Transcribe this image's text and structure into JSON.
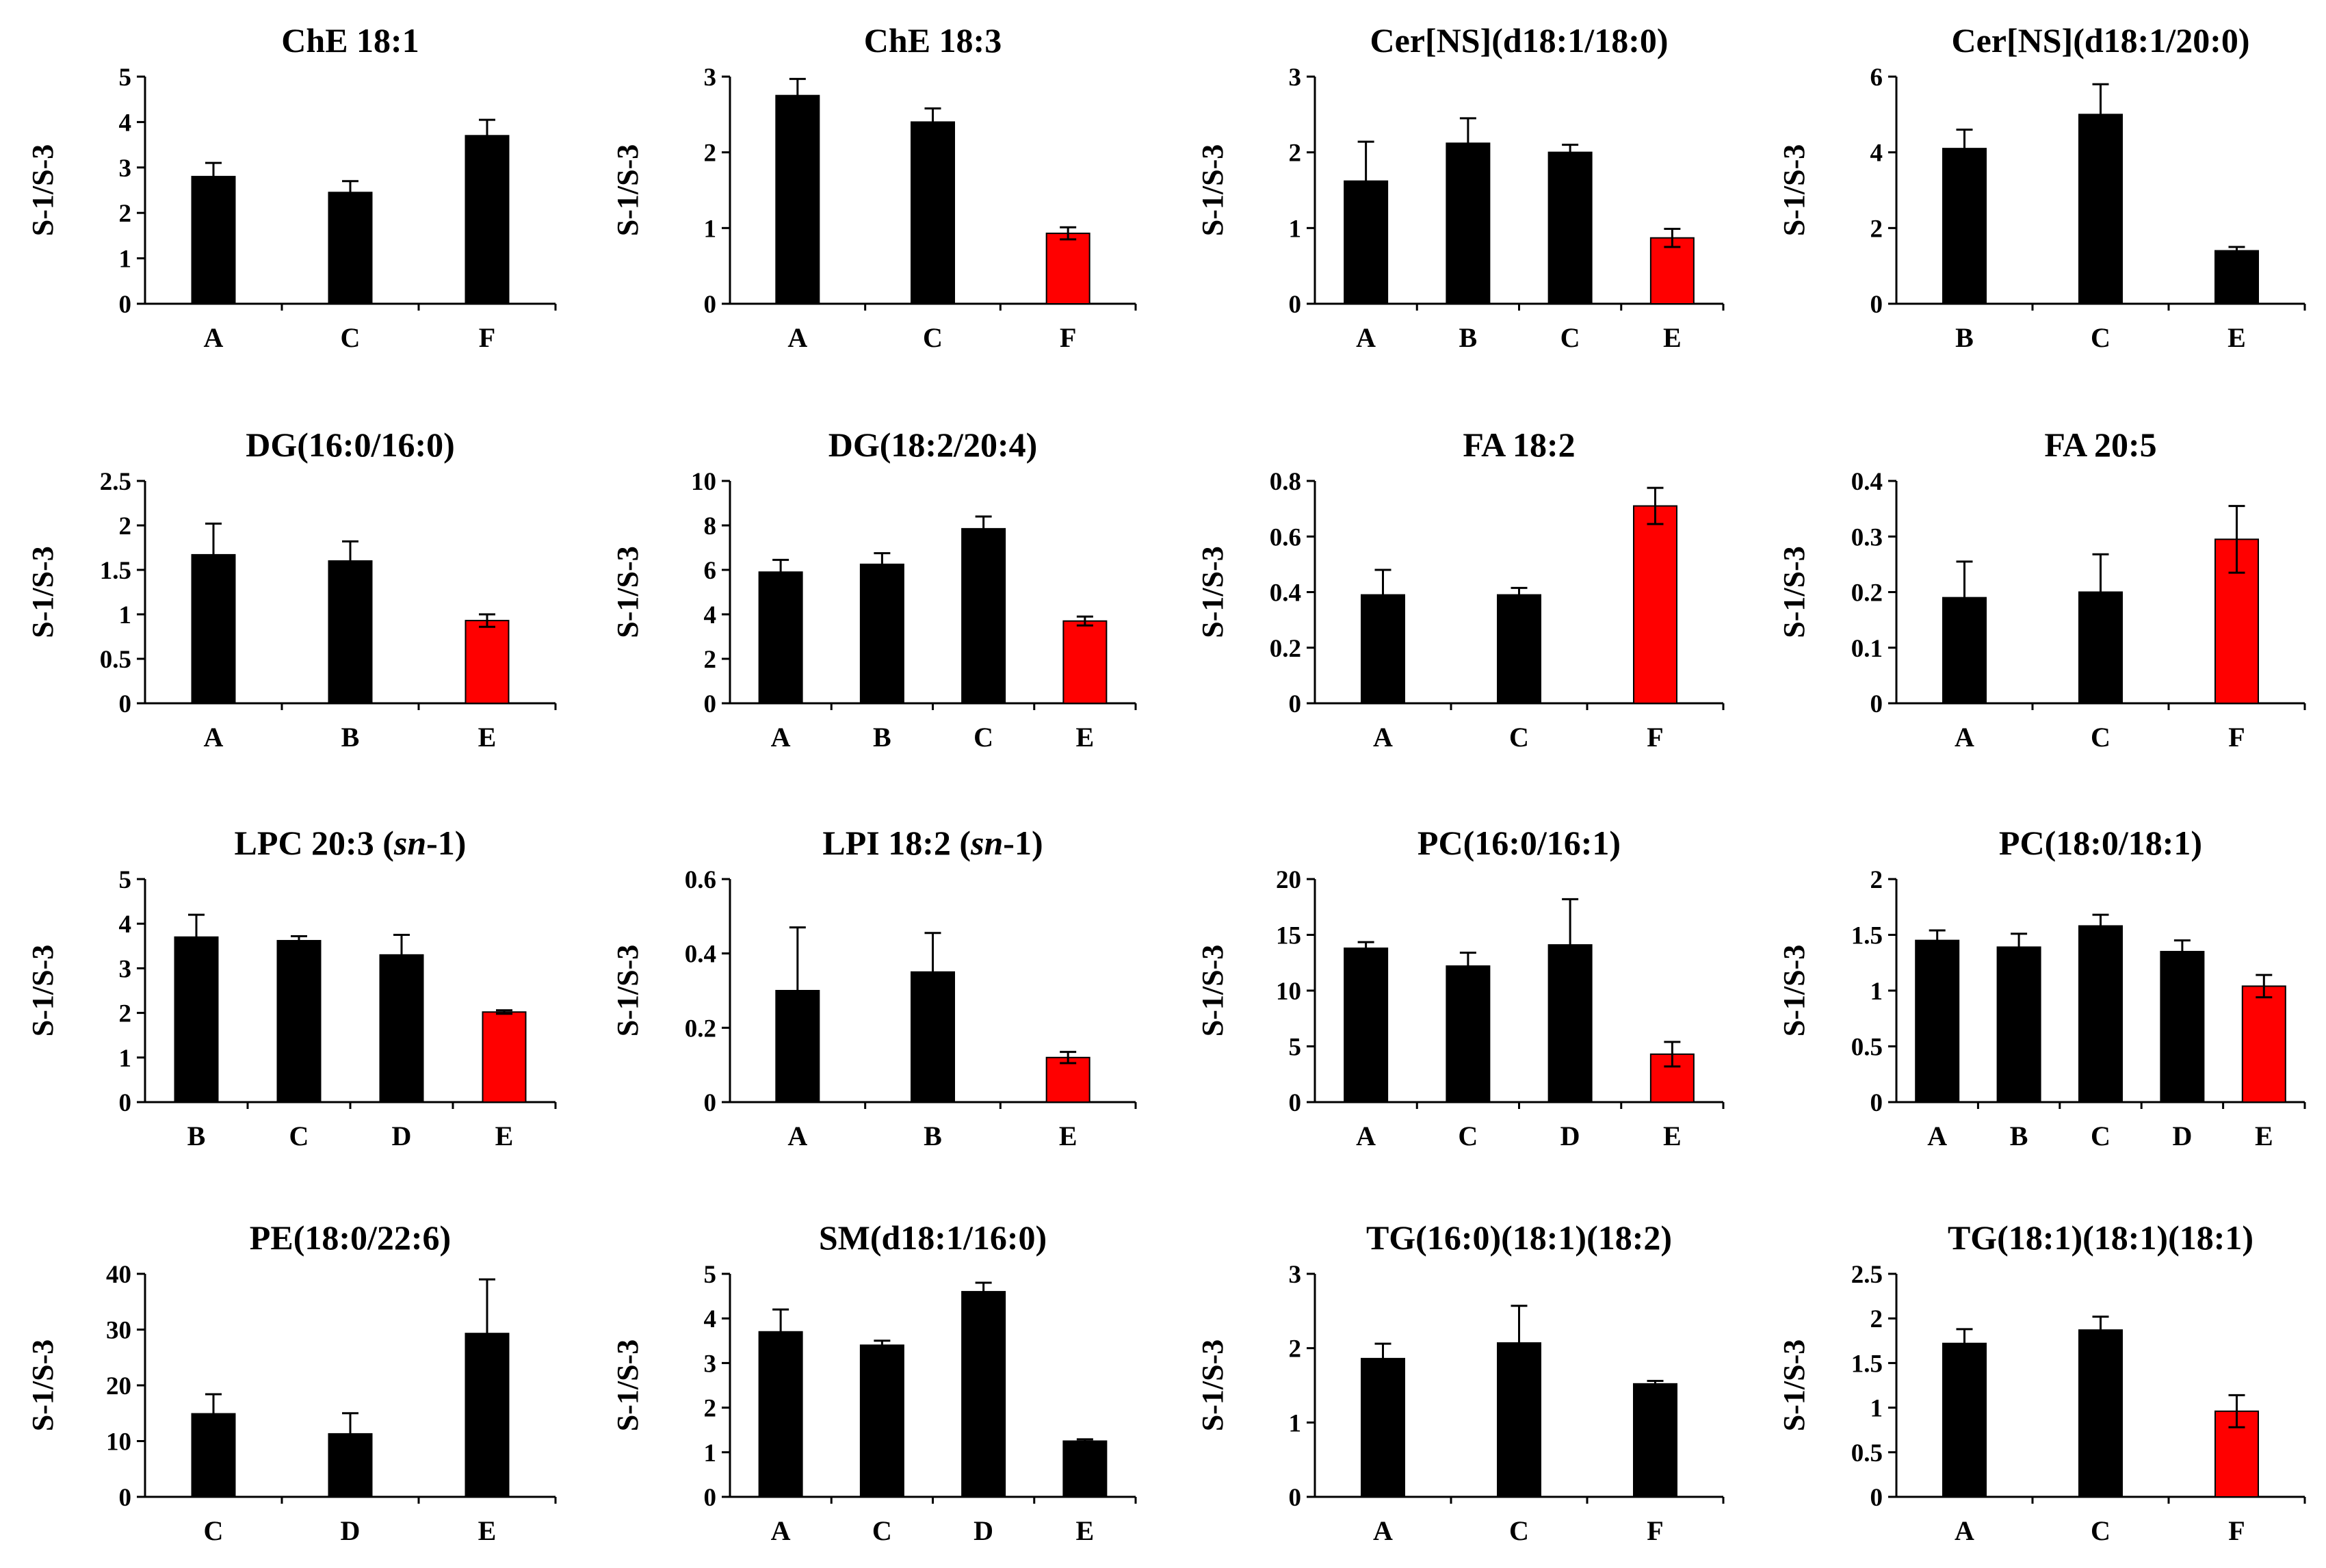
{
  "figure": {
    "ylabel": "S-1/S-3",
    "colors": {
      "normal": "#000000",
      "highlight": "#ff0000",
      "error_bar": "#000000"
    }
  },
  "chart_data": [
    {
      "type": "bar",
      "title": "ChE 18:1",
      "ylabel": "S-1/S-3",
      "ylim": [
        0,
        5
      ],
      "ticks": [
        "0",
        "1",
        "2",
        "3",
        "4",
        "5"
      ],
      "categories": [
        "A",
        "C",
        "F"
      ],
      "values": [
        2.8,
        2.45,
        3.7
      ],
      "errors": [
        0.3,
        0.25,
        0.35
      ],
      "highlight": [
        false,
        false,
        false
      ]
    },
    {
      "type": "bar",
      "title": "ChE 18:3",
      "ylabel": "S-1/S-3",
      "ylim": [
        0,
        3
      ],
      "ticks": [
        "0",
        "1",
        "2",
        "3"
      ],
      "categories": [
        "A",
        "C",
        "F"
      ],
      "values": [
        2.75,
        2.4,
        0.93
      ],
      "errors": [
        0.22,
        0.18,
        0.08
      ],
      "highlight": [
        false,
        false,
        true
      ]
    },
    {
      "type": "bar",
      "title": "Cer[NS](d18:1/18:0)",
      "ylabel": "S-1/S-3",
      "ylim": [
        0,
        3
      ],
      "ticks": [
        "0",
        "1",
        "2",
        "3"
      ],
      "categories": [
        "A",
        "B",
        "C",
        "E"
      ],
      "values": [
        1.62,
        2.12,
        2.0,
        0.87
      ],
      "errors": [
        0.52,
        0.33,
        0.1,
        0.12
      ],
      "highlight": [
        false,
        false,
        false,
        true
      ]
    },
    {
      "type": "bar",
      "title": "Cer[NS](d18:1/20:0)",
      "ylabel": "S-1/S-3",
      "ylim": [
        0,
        6
      ],
      "ticks": [
        "0",
        "2",
        "4",
        "6"
      ],
      "categories": [
        "B",
        "C",
        "E"
      ],
      "values": [
        4.1,
        5.0,
        1.4
      ],
      "errors": [
        0.5,
        0.8,
        0.1
      ],
      "highlight": [
        false,
        false,
        false
      ]
    },
    {
      "type": "bar",
      "title": "DG(16:0/16:0)",
      "ylabel": "S-1/S-3",
      "ylim": [
        0,
        2.5
      ],
      "ticks": [
        "0",
        "0.5",
        "1",
        "1.5",
        "2",
        "2.5"
      ],
      "categories": [
        "A",
        "B",
        "E"
      ],
      "values": [
        1.67,
        1.6,
        0.93
      ],
      "errors": [
        0.35,
        0.22,
        0.07
      ],
      "highlight": [
        false,
        false,
        true
      ]
    },
    {
      "type": "bar",
      "title": "DG(18:2/20:4)",
      "ylabel": "S-1/S-3",
      "ylim": [
        0,
        10
      ],
      "ticks": [
        "0",
        "2",
        "4",
        "6",
        "8",
        "10"
      ],
      "categories": [
        "A",
        "B",
        "C",
        "E"
      ],
      "values": [
        5.9,
        6.25,
        7.85,
        3.7
      ],
      "errors": [
        0.55,
        0.5,
        0.55,
        0.2
      ],
      "highlight": [
        false,
        false,
        false,
        true
      ]
    },
    {
      "type": "bar",
      "title": "FA 18:2",
      "ylabel": "S-1/S-3",
      "ylim": [
        0,
        0.8
      ],
      "ticks": [
        "0",
        "0.2",
        "0.4",
        "0.6",
        "0.8"
      ],
      "categories": [
        "A",
        "C",
        "F"
      ],
      "values": [
        0.39,
        0.39,
        0.71
      ],
      "errors": [
        0.09,
        0.025,
        0.065
      ],
      "highlight": [
        false,
        false,
        true
      ]
    },
    {
      "type": "bar",
      "title": "FA 20:5",
      "ylabel": "S-1/S-3",
      "ylim": [
        0,
        0.4
      ],
      "ticks": [
        "0",
        "0.1",
        "0.2",
        "0.3",
        "0.4"
      ],
      "categories": [
        "A",
        "C",
        "F"
      ],
      "values": [
        0.19,
        0.2,
        0.295
      ],
      "errors": [
        0.065,
        0.068,
        0.06
      ],
      "highlight": [
        false,
        false,
        true
      ]
    },
    {
      "type": "bar",
      "title": "LPC 20:3 (sn-1)",
      "title_parts": [
        "LPC 20:3 (",
        "sn",
        "-1)"
      ],
      "ylabel": "S-1/S-3",
      "ylim": [
        0,
        5
      ],
      "ticks": [
        "0",
        "1",
        "2",
        "3",
        "4",
        "5"
      ],
      "categories": [
        "B",
        "C",
        "D",
        "E"
      ],
      "values": [
        3.7,
        3.62,
        3.3,
        2.02
      ],
      "errors": [
        0.5,
        0.1,
        0.45,
        0.04
      ],
      "highlight": [
        false,
        false,
        false,
        true
      ]
    },
    {
      "type": "bar",
      "title": "LPI 18:2 (sn-1)",
      "title_parts": [
        "LPI 18:2 (",
        "sn",
        "-1)"
      ],
      "ylabel": "S-1/S-3",
      "ylim": [
        0,
        0.6
      ],
      "ticks": [
        "0",
        "0.2",
        "0.4",
        "0.6"
      ],
      "categories": [
        "A",
        "B",
        "E"
      ],
      "values": [
        0.3,
        0.35,
        0.12
      ],
      "errors": [
        0.17,
        0.105,
        0.015
      ],
      "highlight": [
        false,
        false,
        true
      ]
    },
    {
      "type": "bar",
      "title": "PC(16:0/16:1)",
      "ylabel": "S-1/S-3",
      "ylim": [
        0,
        20
      ],
      "ticks": [
        "0",
        "5",
        "10",
        "15",
        "20"
      ],
      "categories": [
        "A",
        "C",
        "D",
        "E"
      ],
      "values": [
        13.8,
        12.2,
        14.1,
        4.3
      ],
      "errors": [
        0.55,
        1.2,
        4.1,
        1.1
      ],
      "highlight": [
        false,
        false,
        false,
        true
      ]
    },
    {
      "type": "bar",
      "title": "PC(18:0/18:1)",
      "ylabel": "S-1/S-3",
      "ylim": [
        0,
        2
      ],
      "ticks": [
        "0",
        "0.5",
        "1",
        "1.5",
        "2"
      ],
      "categories": [
        "A",
        "B",
        "C",
        "D",
        "E"
      ],
      "values": [
        1.45,
        1.39,
        1.58,
        1.35,
        1.04
      ],
      "errors": [
        0.09,
        0.12,
        0.1,
        0.1,
        0.1
      ],
      "highlight": [
        false,
        false,
        false,
        false,
        true
      ]
    },
    {
      "type": "bar",
      "title": "PE(18:0/22:6)",
      "ylabel": "S-1/S-3",
      "ylim": [
        0,
        40
      ],
      "ticks": [
        "0",
        "10",
        "20",
        "30",
        "40"
      ],
      "categories": [
        "C",
        "D",
        "E"
      ],
      "values": [
        14.9,
        11.3,
        29.3
      ],
      "errors": [
        3.5,
        3.7,
        9.7
      ],
      "highlight": [
        false,
        false,
        false
      ]
    },
    {
      "type": "bar",
      "title": "SM(d18:1/16:0)",
      "ylabel": "S-1/S-3",
      "ylim": [
        0,
        5
      ],
      "ticks": [
        "0",
        "1",
        "2",
        "3",
        "4",
        "5"
      ],
      "categories": [
        "A",
        "C",
        "D",
        "E"
      ],
      "values": [
        3.7,
        3.4,
        4.6,
        1.25
      ],
      "errors": [
        0.5,
        0.1,
        0.2,
        0.04
      ],
      "highlight": [
        false,
        false,
        false,
        false
      ]
    },
    {
      "type": "bar",
      "title": "TG(16:0)(18:1)(18:2)",
      "ylabel": "S-1/S-3",
      "ylim": [
        0,
        3
      ],
      "ticks": [
        "0",
        "1",
        "2",
        "3"
      ],
      "categories": [
        "A",
        "C",
        "F"
      ],
      "values": [
        1.86,
        2.07,
        1.52
      ],
      "errors": [
        0.2,
        0.5,
        0.04
      ],
      "highlight": [
        false,
        false,
        false
      ]
    },
    {
      "type": "bar",
      "title": "TG(18:1)(18:1)(18:1)",
      "ylabel": "S-1/S-3",
      "ylim": [
        0,
        2.5
      ],
      "ticks": [
        "0",
        "0.5",
        "1",
        "1.5",
        "2",
        "2.5"
      ],
      "categories": [
        "A",
        "C",
        "F"
      ],
      "values": [
        1.72,
        1.87,
        0.96
      ],
      "errors": [
        0.16,
        0.15,
        0.18
      ],
      "highlight": [
        false,
        false,
        true
      ]
    }
  ]
}
